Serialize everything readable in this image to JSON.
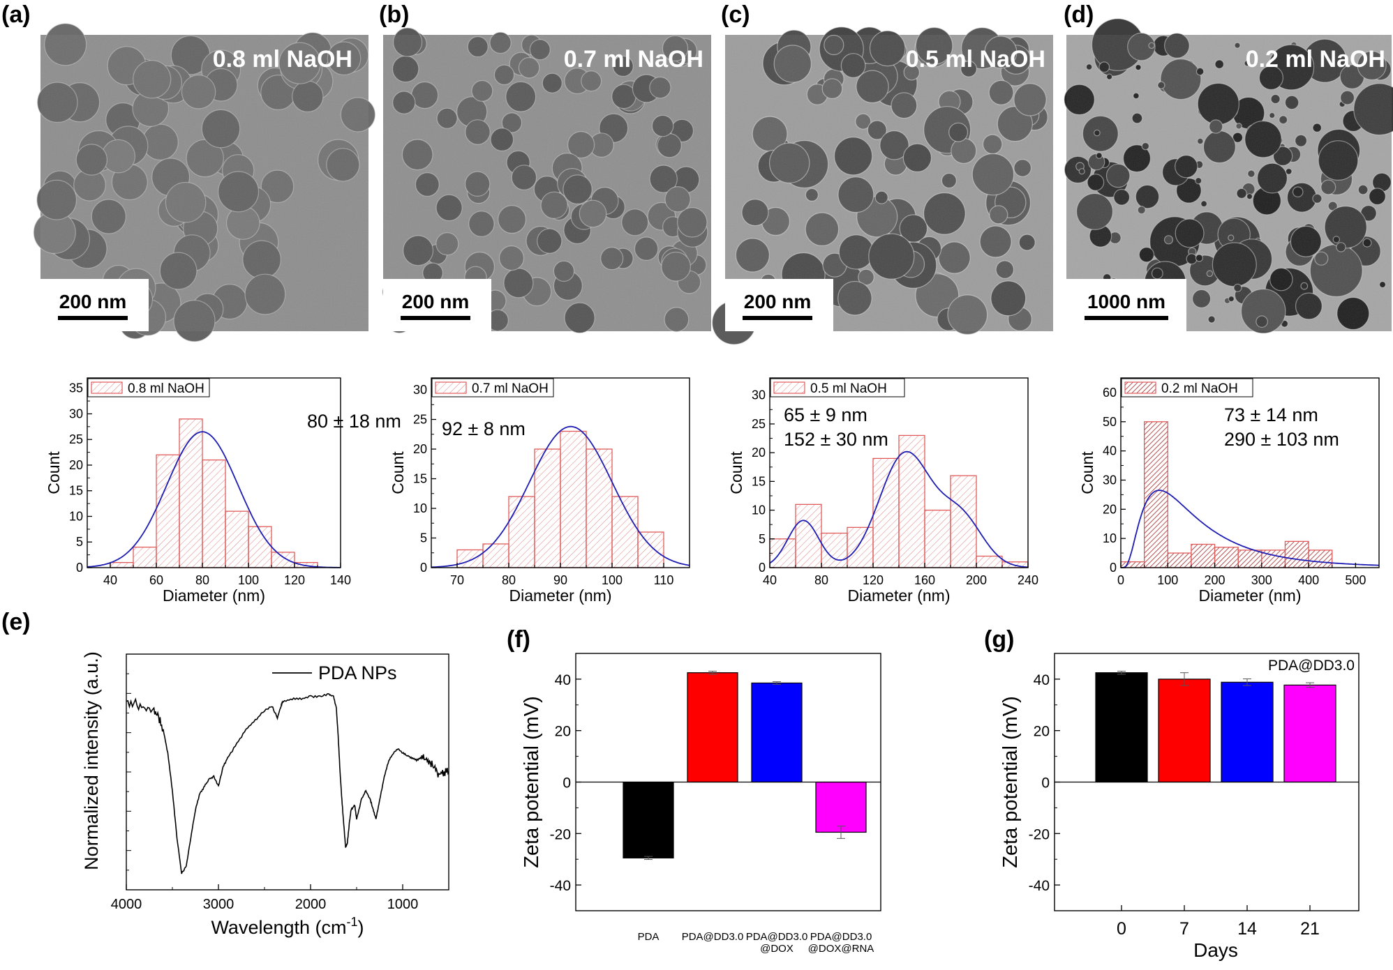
{
  "figure": {
    "panels": {
      "a": {
        "label": "(a)",
        "tem_caption": "0.8 ml NaOH",
        "scale_bar": "200 nm"
      },
      "b": {
        "label": "(b)",
        "tem_caption": "0.7 ml NaOH",
        "scale_bar": "200 nm"
      },
      "c": {
        "label": "(c)",
        "tem_caption": "0.5 ml NaOH",
        "scale_bar": "200 nm"
      },
      "d": {
        "label": "(d)",
        "tem_caption": "0.2 ml NaOH",
        "scale_bar": "1000 nm"
      },
      "e": {
        "label": "(e)"
      },
      "f": {
        "label": "(f)"
      },
      "g": {
        "label": "(g)"
      }
    }
  },
  "colors": {
    "hist_edge": "#e05a5a",
    "fit_line": "#1c1cb4",
    "bar_black": "#000000",
    "bar_red": "#ff0000",
    "bar_blue": "#0000ff",
    "bar_magenta": "#ff00ff"
  },
  "chart_data": [
    {
      "id": "hist_a",
      "type": "bar",
      "subtype": "histogram",
      "legend": "0.8 ml NaOH",
      "annotation": [
        "80 ± 18 nm"
      ],
      "xlabel": "Diameter (nm)",
      "ylabel": "Count",
      "xlim": [
        30,
        140
      ],
      "ylim": [
        0,
        37
      ],
      "xticks": [
        40,
        60,
        80,
        100,
        120,
        140
      ],
      "yticks": [
        0,
        5,
        10,
        15,
        20,
        25,
        30,
        35
      ],
      "bin_width": 10,
      "bin_starts": [
        40,
        50,
        60,
        70,
        80,
        90,
        100,
        110,
        120
      ],
      "counts": [
        1,
        4,
        22,
        29,
        21,
        11,
        8,
        3,
        1
      ],
      "fit": {
        "kind": "gaussian",
        "mean": 80,
        "sigma": 15.5,
        "amp": 26.5
      }
    },
    {
      "id": "hist_b",
      "type": "bar",
      "subtype": "histogram",
      "legend": "0.7 ml NaOH",
      "annotation": [
        "92 ± 8 nm"
      ],
      "xlabel": "Diameter (nm)",
      "ylabel": "Count",
      "xlim": [
        65,
        115
      ],
      "ylim": [
        0,
        32
      ],
      "xticks": [
        70,
        80,
        90,
        100,
        110
      ],
      "yticks": [
        0,
        5,
        10,
        15,
        20,
        25,
        30
      ],
      "bin_width": 5,
      "bin_starts": [
        70,
        75,
        80,
        85,
        90,
        95,
        100,
        105
      ],
      "counts": [
        3,
        4,
        12,
        20,
        23,
        20,
        12,
        6
      ],
      "fit": {
        "kind": "gaussian",
        "mean": 92,
        "sigma": 8,
        "amp": 23.8
      }
    },
    {
      "id": "hist_c",
      "type": "bar",
      "subtype": "histogram",
      "legend": "0.5 ml NaOH",
      "annotation": [
        "65 ± 9 nm",
        "152 ± 30 nm"
      ],
      "xlabel": "Diameter (nm)",
      "ylabel": "Count",
      "xlim": [
        40,
        240
      ],
      "ylim": [
        0,
        33
      ],
      "xticks": [
        40,
        80,
        120,
        160,
        200,
        240
      ],
      "yticks": [
        0,
        5,
        10,
        15,
        20,
        25,
        30
      ],
      "bin_width": 20,
      "bin_starts": [
        40,
        60,
        80,
        100,
        120,
        140,
        160,
        180,
        200,
        220
      ],
      "counts": [
        5,
        11,
        6,
        7,
        19,
        23,
        10,
        16,
        2,
        1
      ],
      "fit": {
        "kind": "gaussian_sum",
        "components": [
          {
            "mean": 66,
            "sigma": 12,
            "amp": 8.2
          },
          {
            "mean": 145,
            "sigma": 20,
            "amp": 19.8
          },
          {
            "mean": 188,
            "sigma": 17,
            "amp": 8.5
          }
        ]
      }
    },
    {
      "id": "hist_d",
      "type": "bar",
      "subtype": "histogram",
      "legend": "0.2 ml NaOH",
      "annotation": [
        "73 ± 14 nm",
        "290 ± 103 nm"
      ],
      "xlabel": "Diameter (nm)",
      "ylabel": "Count",
      "xlim": [
        0,
        550
      ],
      "ylim": [
        0,
        65
      ],
      "xticks": [
        0,
        100,
        200,
        300,
        400,
        500
      ],
      "yticks": [
        0,
        10,
        20,
        30,
        40,
        50,
        60
      ],
      "bin_width": 50,
      "bin_starts": [
        0,
        50,
        100,
        150,
        200,
        250,
        300,
        350,
        400,
        450,
        500
      ],
      "counts": [
        2,
        50,
        5,
        8,
        7,
        6,
        6,
        9,
        6,
        0,
        0
      ],
      "fit": {
        "kind": "lognormal",
        "mode": 82,
        "s": 0.72,
        "amp": 26.5
      }
    },
    {
      "id": "ftir_e",
      "type": "line",
      "legend": "PDA NPs",
      "xlabel": "Wavelength (cm-1)",
      "ylabel": "Normalized intensity (a.u.)",
      "xlim": [
        4000,
        500
      ],
      "xticks": [
        4000,
        3000,
        2000,
        1000
      ],
      "ylim": [
        0,
        1
      ],
      "x": [
        4000,
        3900,
        3800,
        3700,
        3650,
        3600,
        3550,
        3500,
        3450,
        3400,
        3350,
        3300,
        3250,
        3200,
        3150,
        3100,
        3050,
        3000,
        2950,
        2900,
        2800,
        2700,
        2600,
        2500,
        2420,
        2360,
        2320,
        2300,
        2200,
        2100,
        2000,
        1900,
        1800,
        1750,
        1720,
        1700,
        1680,
        1660,
        1640,
        1620,
        1600,
        1580,
        1560,
        1520,
        1500,
        1450,
        1400,
        1350,
        1320,
        1290,
        1250,
        1200,
        1150,
        1100,
        1050,
        1000,
        950,
        900,
        850,
        800,
        750,
        700,
        650,
        600,
        550,
        500
      ],
      "y": [
        0.8,
        0.79,
        0.77,
        0.76,
        0.73,
        0.68,
        0.58,
        0.42,
        0.22,
        0.07,
        0.1,
        0.22,
        0.34,
        0.41,
        0.44,
        0.47,
        0.48,
        0.44,
        0.52,
        0.56,
        0.62,
        0.68,
        0.72,
        0.76,
        0.78,
        0.73,
        0.78,
        0.8,
        0.81,
        0.81,
        0.82,
        0.82,
        0.83,
        0.82,
        0.77,
        0.65,
        0.5,
        0.38,
        0.28,
        0.18,
        0.2,
        0.28,
        0.34,
        0.36,
        0.3,
        0.38,
        0.42,
        0.38,
        0.34,
        0.3,
        0.38,
        0.48,
        0.55,
        0.58,
        0.6,
        0.58,
        0.57,
        0.56,
        0.55,
        0.56,
        0.55,
        0.54,
        0.51,
        0.49,
        0.5,
        0.5
      ]
    },
    {
      "id": "zeta_f",
      "type": "bar",
      "ylabel": "Zeta potential (mV)",
      "ylim": [
        -50,
        50
      ],
      "yticks": [
        -40,
        -20,
        0,
        20,
        40
      ],
      "categories": [
        "PDA",
        "PDA@DD3.0",
        "PDA@DD3.0\n@DOX",
        "PDA@DD3.0\n@DOX@RNA"
      ],
      "values": [
        -29.5,
        42.5,
        38.5,
        -19.5
      ],
      "errors": [
        0.6,
        0.6,
        0.5,
        2.4
      ],
      "bar_colors": [
        "#000000",
        "#ff0000",
        "#0000ff",
        "#ff00ff"
      ]
    },
    {
      "id": "zeta_g",
      "type": "bar",
      "legend": "PDA@DD3.0",
      "xlabel": "Days",
      "ylabel": "Zeta potential (mV)",
      "ylim": [
        -50,
        50
      ],
      "yticks": [
        -40,
        -20,
        0,
        20,
        40
      ],
      "categories": [
        "0",
        "7",
        "14",
        "21"
      ],
      "values": [
        42.5,
        40.0,
        38.8,
        37.7
      ],
      "errors": [
        0.6,
        2.5,
        1.3,
        0.9
      ],
      "bar_colors": [
        "#000000",
        "#ff0000",
        "#0000ff",
        "#ff00ff"
      ]
    }
  ]
}
